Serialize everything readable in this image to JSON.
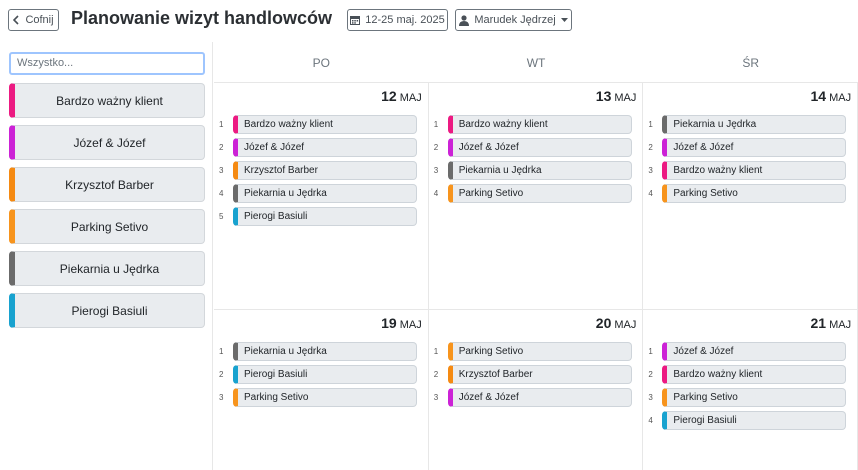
{
  "header": {
    "back_button": "Cofnij",
    "title": "Planowanie wizyt handlowców",
    "date_range": "12-25 maj. 2025",
    "user": "Marudek Jędrzej"
  },
  "sidebar": {
    "search_placeholder": "Wszystko...",
    "clients": [
      {
        "name": "Bardzo ważny klient",
        "color": "#ec1a82"
      },
      {
        "name": "Józef & Józef",
        "color": "#cc22d6"
      },
      {
        "name": "Krzysztof Barber",
        "color": "#f58a12"
      },
      {
        "name": "Parking Setivo",
        "color": "#f7941d"
      },
      {
        "name": "Piekarnia u Jędrka",
        "color": "#6b6b6b"
      },
      {
        "name": "Pierogi Basiuli",
        "color": "#18a2cf"
      }
    ]
  },
  "calendar": {
    "weekdays": [
      "PO",
      "WT",
      "ŚR"
    ],
    "days": [
      {
        "day": 12,
        "month": "MAJ",
        "visits": [
          {
            "index": 1,
            "name": "Bardzo ważny klient",
            "color": "#ec1a82"
          },
          {
            "index": 2,
            "name": "Józef & Józef",
            "color": "#cc22d6"
          },
          {
            "index": 3,
            "name": "Krzysztof Barber",
            "color": "#f58a12"
          },
          {
            "index": 4,
            "name": "Piekarnia u Jędrka",
            "color": "#6b6b6b"
          },
          {
            "index": 5,
            "name": "Pierogi Basiuli",
            "color": "#18a2cf"
          }
        ]
      },
      {
        "day": 13,
        "month": "MAJ",
        "visits": [
          {
            "index": 1,
            "name": "Bardzo ważny klient",
            "color": "#ec1a82"
          },
          {
            "index": 2,
            "name": "Józef & Józef",
            "color": "#cc22d6"
          },
          {
            "index": 3,
            "name": "Piekarnia u Jędrka",
            "color": "#6b6b6b"
          },
          {
            "index": 4,
            "name": "Parking Setivo",
            "color": "#f7941d"
          }
        ]
      },
      {
        "day": 14,
        "month": "MAJ",
        "visits": [
          {
            "index": 1,
            "name": "Piekarnia u Jędrka",
            "color": "#6b6b6b"
          },
          {
            "index": 2,
            "name": "Józef & Józef",
            "color": "#cc22d6"
          },
          {
            "index": 3,
            "name": "Bardzo ważny klient",
            "color": "#ec1a82"
          },
          {
            "index": 4,
            "name": "Parking Setivo",
            "color": "#f7941d"
          }
        ]
      },
      {
        "day": 19,
        "month": "MAJ",
        "visits": [
          {
            "index": 1,
            "name": "Piekarnia u Jędrka",
            "color": "#6b6b6b"
          },
          {
            "index": 2,
            "name": "Pierogi Basiuli",
            "color": "#18a2cf"
          },
          {
            "index": 3,
            "name": "Parking Setivo",
            "color": "#f7941d"
          }
        ]
      },
      {
        "day": 20,
        "month": "MAJ",
        "visits": [
          {
            "index": 1,
            "name": "Parking Setivo",
            "color": "#f7941d"
          },
          {
            "index": 2,
            "name": "Krzysztof Barber",
            "color": "#f58a12"
          },
          {
            "index": 3,
            "name": "Józef & Józef",
            "color": "#cc22d6"
          }
        ]
      },
      {
        "day": 21,
        "month": "MAJ",
        "visits": [
          {
            "index": 1,
            "name": "Józef & Józef",
            "color": "#cc22d6"
          },
          {
            "index": 2,
            "name": "Bardzo ważny klient",
            "color": "#ec1a82"
          },
          {
            "index": 3,
            "name": "Parking Setivo",
            "color": "#f7941d"
          },
          {
            "index": 4,
            "name": "Pierogi Basiuli",
            "color": "#18a2cf"
          }
        ]
      }
    ]
  }
}
